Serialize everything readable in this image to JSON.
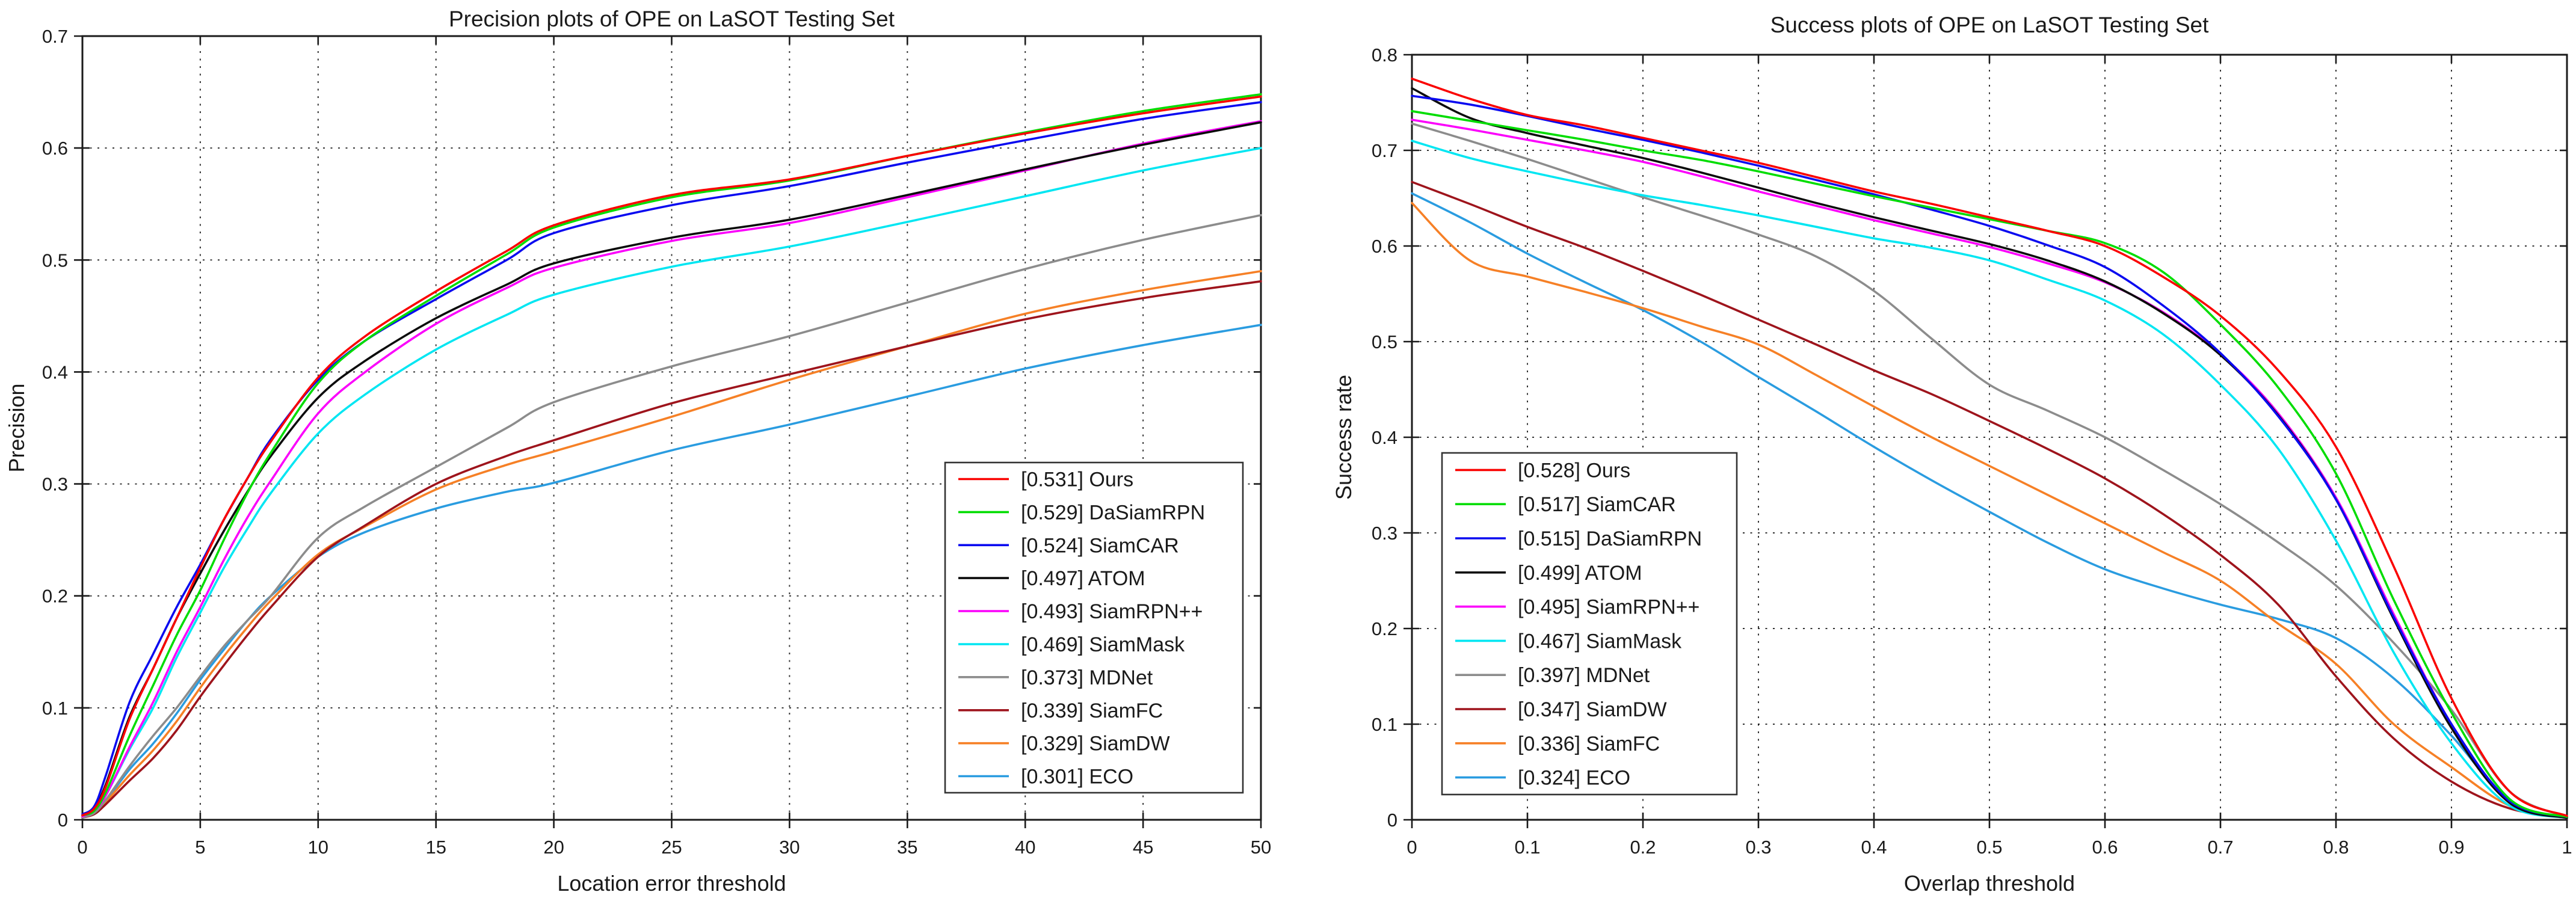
{
  "figure": {
    "background": "#ffffff",
    "text_color": "#1a1a1a",
    "axis_color": "#1a1a1a"
  },
  "chart_data": [
    {
      "id": "precision",
      "type": "line",
      "title": "Precision plots of OPE on LaSOT Testing Set",
      "xlabel": "Location error threshold",
      "ylabel": "Precision",
      "xlim": [
        0,
        50
      ],
      "ylim": [
        0,
        0.7
      ],
      "xticks": [
        0,
        5,
        10,
        15,
        20,
        25,
        30,
        35,
        40,
        45,
        50
      ],
      "yticks": [
        0,
        0.1,
        0.2,
        0.3,
        0.4,
        0.5,
        0.6,
        0.7
      ],
      "grid": true,
      "legend_position": "inside-bottom-right",
      "x": [
        0,
        0.5,
        1,
        2,
        3,
        4,
        5,
        6,
        7,
        8,
        10,
        12,
        15,
        18,
        20,
        25,
        30,
        35,
        40,
        45,
        50
      ],
      "series": [
        {
          "tracker": "Ours",
          "score": 0.531,
          "label": "[0.531] Ours",
          "color": "#fa0200",
          "values": [
            0.004,
            0.01,
            0.03,
            0.09,
            0.135,
            0.18,
            0.225,
            0.268,
            0.305,
            0.338,
            0.395,
            0.432,
            0.472,
            0.508,
            0.531,
            0.558,
            0.572,
            0.593,
            0.613,
            0.631,
            0.646
          ]
        },
        {
          "tracker": "DaSiamRPN",
          "score": 0.529,
          "label": "[0.529] DaSiamRPN",
          "color": "#00dd00",
          "values": [
            0.004,
            0.008,
            0.025,
            0.075,
            0.12,
            0.165,
            0.205,
            0.25,
            0.292,
            0.328,
            0.39,
            0.428,
            0.468,
            0.505,
            0.529,
            0.556,
            0.571,
            0.593,
            0.614,
            0.633,
            0.648
          ]
        },
        {
          "tracker": "SiamCAR",
          "score": 0.524,
          "label": "[0.524] SiamCAR",
          "color": "#0a0af0",
          "values": [
            0.005,
            0.012,
            0.04,
            0.105,
            0.148,
            0.19,
            0.228,
            0.268,
            0.305,
            0.34,
            0.393,
            0.428,
            0.465,
            0.5,
            0.524,
            0.549,
            0.566,
            0.587,
            0.607,
            0.626,
            0.641
          ]
        },
        {
          "tracker": "ATOM",
          "score": 0.497,
          "label": "[0.497] ATOM",
          "color": "#0c0c0c",
          "values": [
            0.004,
            0.01,
            0.032,
            0.092,
            0.135,
            0.18,
            0.22,
            0.258,
            0.293,
            0.325,
            0.377,
            0.41,
            0.448,
            0.478,
            0.497,
            0.52,
            0.536,
            0.558,
            0.581,
            0.603,
            0.623
          ]
        },
        {
          "tracker": "SiamRPN++",
          "score": 0.493,
          "label": "[0.493] SiamRPN++",
          "color": "#fb00fb",
          "values": [
            0.003,
            0.008,
            0.022,
            0.065,
            0.105,
            0.15,
            0.19,
            0.232,
            0.27,
            0.303,
            0.363,
            0.4,
            0.443,
            0.475,
            0.493,
            0.517,
            0.533,
            0.556,
            0.58,
            0.604,
            0.624
          ]
        },
        {
          "tracker": "SiamMask",
          "score": 0.469,
          "label": "[0.469] SiamMask",
          "color": "#00e6f2",
          "values": [
            0.003,
            0.008,
            0.022,
            0.063,
            0.1,
            0.145,
            0.185,
            0.225,
            0.26,
            0.292,
            0.345,
            0.38,
            0.42,
            0.451,
            0.469,
            0.494,
            0.512,
            0.534,
            0.557,
            0.58,
            0.6
          ]
        },
        {
          "tracker": "MDNet",
          "score": 0.373,
          "label": "[0.373] MDNet",
          "color": "#8c8c8c",
          "values": [
            0.002,
            0.006,
            0.018,
            0.048,
            0.075,
            0.1,
            0.128,
            0.155,
            0.178,
            0.2,
            0.252,
            0.28,
            0.315,
            0.35,
            0.373,
            0.405,
            0.432,
            0.462,
            0.492,
            0.518,
            0.54
          ]
        },
        {
          "tracker": "SiamFC",
          "score": 0.339,
          "label": "[0.339] SiamFC",
          "color": "#9e141c",
          "values": [
            0.002,
            0.005,
            0.014,
            0.035,
            0.055,
            0.08,
            0.11,
            0.138,
            0.165,
            0.19,
            0.235,
            0.263,
            0.3,
            0.325,
            0.339,
            0.372,
            0.398,
            0.423,
            0.447,
            0.466,
            0.481
          ]
        },
        {
          "tracker": "SiamDW",
          "score": 0.329,
          "label": "[0.329] SiamDW",
          "color": "#f68026",
          "values": [
            0.002,
            0.006,
            0.016,
            0.04,
            0.062,
            0.088,
            0.118,
            0.146,
            0.172,
            0.196,
            0.237,
            0.262,
            0.295,
            0.317,
            0.329,
            0.36,
            0.393,
            0.423,
            0.452,
            0.473,
            0.49
          ]
        },
        {
          "tracker": "ECO",
          "score": 0.301,
          "label": "[0.301] ECO",
          "color": "#2a9ce0",
          "values": [
            0.002,
            0.006,
            0.017,
            0.045,
            0.068,
            0.095,
            0.125,
            0.152,
            0.178,
            0.2,
            0.235,
            0.257,
            0.278,
            0.293,
            0.301,
            0.33,
            0.353,
            0.378,
            0.403,
            0.424,
            0.442
          ]
        }
      ]
    },
    {
      "id": "success",
      "type": "line",
      "title": "Success plots of OPE on LaSOT Testing Set",
      "xlabel": "Overlap threshold",
      "ylabel": "Success rate",
      "xlim": [
        0,
        1
      ],
      "ylim": [
        0,
        0.8
      ],
      "xticks": [
        0,
        0.1,
        0.2,
        0.3,
        0.4,
        0.5,
        0.6,
        0.7,
        0.8,
        0.9,
        1
      ],
      "yticks": [
        0,
        0.1,
        0.2,
        0.3,
        0.4,
        0.5,
        0.6,
        0.7,
        0.8
      ],
      "grid": true,
      "legend_position": "inside-bottom-left",
      "x": [
        0,
        0.05,
        0.1,
        0.15,
        0.2,
        0.25,
        0.3,
        0.35,
        0.4,
        0.45,
        0.5,
        0.55,
        0.6,
        0.65,
        0.7,
        0.75,
        0.8,
        0.85,
        0.9,
        0.95,
        1
      ],
      "series": [
        {
          "tracker": "Ours",
          "score": 0.528,
          "label": "[0.528] Ours",
          "color": "#fa0200",
          "values": [
            0.775,
            0.754,
            0.737,
            0.726,
            0.713,
            0.7,
            0.687,
            0.672,
            0.657,
            0.644,
            0.63,
            0.616,
            0.6,
            0.568,
            0.527,
            0.47,
            0.39,
            0.265,
            0.127,
            0.03,
            0.004
          ]
        },
        {
          "tracker": "SiamCAR",
          "score": 0.517,
          "label": "[0.517] SiamCAR",
          "color": "#00dd00",
          "values": [
            0.741,
            0.731,
            0.721,
            0.711,
            0.7,
            0.69,
            0.678,
            0.665,
            0.652,
            0.64,
            0.628,
            0.616,
            0.603,
            0.573,
            0.518,
            0.452,
            0.362,
            0.23,
            0.112,
            0.022,
            0.003
          ]
        },
        {
          "tracker": "DaSiamRPN",
          "score": 0.515,
          "label": "[0.515] DaSiamRPN",
          "color": "#0a0af0",
          "values": [
            0.757,
            0.748,
            0.736,
            0.723,
            0.711,
            0.698,
            0.684,
            0.669,
            0.654,
            0.638,
            0.621,
            0.601,
            0.578,
            0.538,
            0.488,
            0.422,
            0.335,
            0.212,
            0.1,
            0.02,
            0.003
          ]
        },
        {
          "tracker": "ATOM",
          "score": 0.499,
          "label": "[0.499] ATOM",
          "color": "#0c0c0c",
          "values": [
            0.765,
            0.734,
            0.718,
            0.705,
            0.692,
            0.677,
            0.661,
            0.645,
            0.63,
            0.616,
            0.602,
            0.585,
            0.563,
            0.53,
            0.486,
            0.423,
            0.335,
            0.21,
            0.096,
            0.018,
            0.002
          ]
        },
        {
          "tracker": "SiamRPN++",
          "score": 0.495,
          "label": "[0.495] SiamRPN++",
          "color": "#fb00fb",
          "values": [
            0.732,
            0.722,
            0.711,
            0.7,
            0.688,
            0.673,
            0.657,
            0.642,
            0.627,
            0.613,
            0.599,
            0.582,
            0.562,
            0.531,
            0.487,
            0.425,
            0.337,
            0.215,
            0.1,
            0.02,
            0.002
          ]
        },
        {
          "tracker": "SiamMask",
          "score": 0.467,
          "label": "[0.467] SiamMask",
          "color": "#00e6f2",
          "values": [
            0.71,
            0.692,
            0.678,
            0.665,
            0.653,
            0.643,
            0.632,
            0.62,
            0.608,
            0.598,
            0.585,
            0.565,
            0.543,
            0.508,
            0.455,
            0.388,
            0.292,
            0.175,
            0.08,
            0.015,
            0.002
          ]
        },
        {
          "tracker": "MDNet",
          "score": 0.397,
          "label": "[0.397] MDNet",
          "color": "#8c8c8c",
          "values": [
            0.728,
            0.71,
            0.691,
            0.671,
            0.651,
            0.632,
            0.612,
            0.589,
            0.553,
            0.503,
            0.455,
            0.428,
            0.4,
            0.366,
            0.33,
            0.29,
            0.245,
            0.185,
            0.115,
            0.03,
            0.003
          ]
        },
        {
          "tracker": "SiamDW",
          "score": 0.347,
          "label": "[0.347] SiamDW",
          "color": "#9e141c",
          "values": [
            0.667,
            0.644,
            0.62,
            0.598,
            0.574,
            0.549,
            0.523,
            0.497,
            0.47,
            0.445,
            0.417,
            0.388,
            0.357,
            0.32,
            0.277,
            0.225,
            0.15,
            0.085,
            0.04,
            0.012,
            0.002
          ]
        },
        {
          "tracker": "SiamFC",
          "score": 0.336,
          "label": "[0.336] SiamFC",
          "color": "#f68026",
          "values": [
            0.645,
            0.585,
            0.568,
            0.552,
            0.535,
            0.516,
            0.497,
            0.465,
            0.432,
            0.4,
            0.37,
            0.34,
            0.31,
            0.28,
            0.25,
            0.205,
            0.163,
            0.1,
            0.055,
            0.015,
            0.002
          ]
        },
        {
          "tracker": "ECO",
          "score": 0.324,
          "label": "[0.324] ECO",
          "color": "#2a9ce0",
          "values": [
            0.655,
            0.625,
            0.592,
            0.562,
            0.533,
            0.5,
            0.463,
            0.427,
            0.39,
            0.355,
            0.322,
            0.29,
            0.262,
            0.242,
            0.225,
            0.21,
            0.19,
            0.148,
            0.088,
            0.02,
            0.002
          ]
        }
      ]
    }
  ]
}
